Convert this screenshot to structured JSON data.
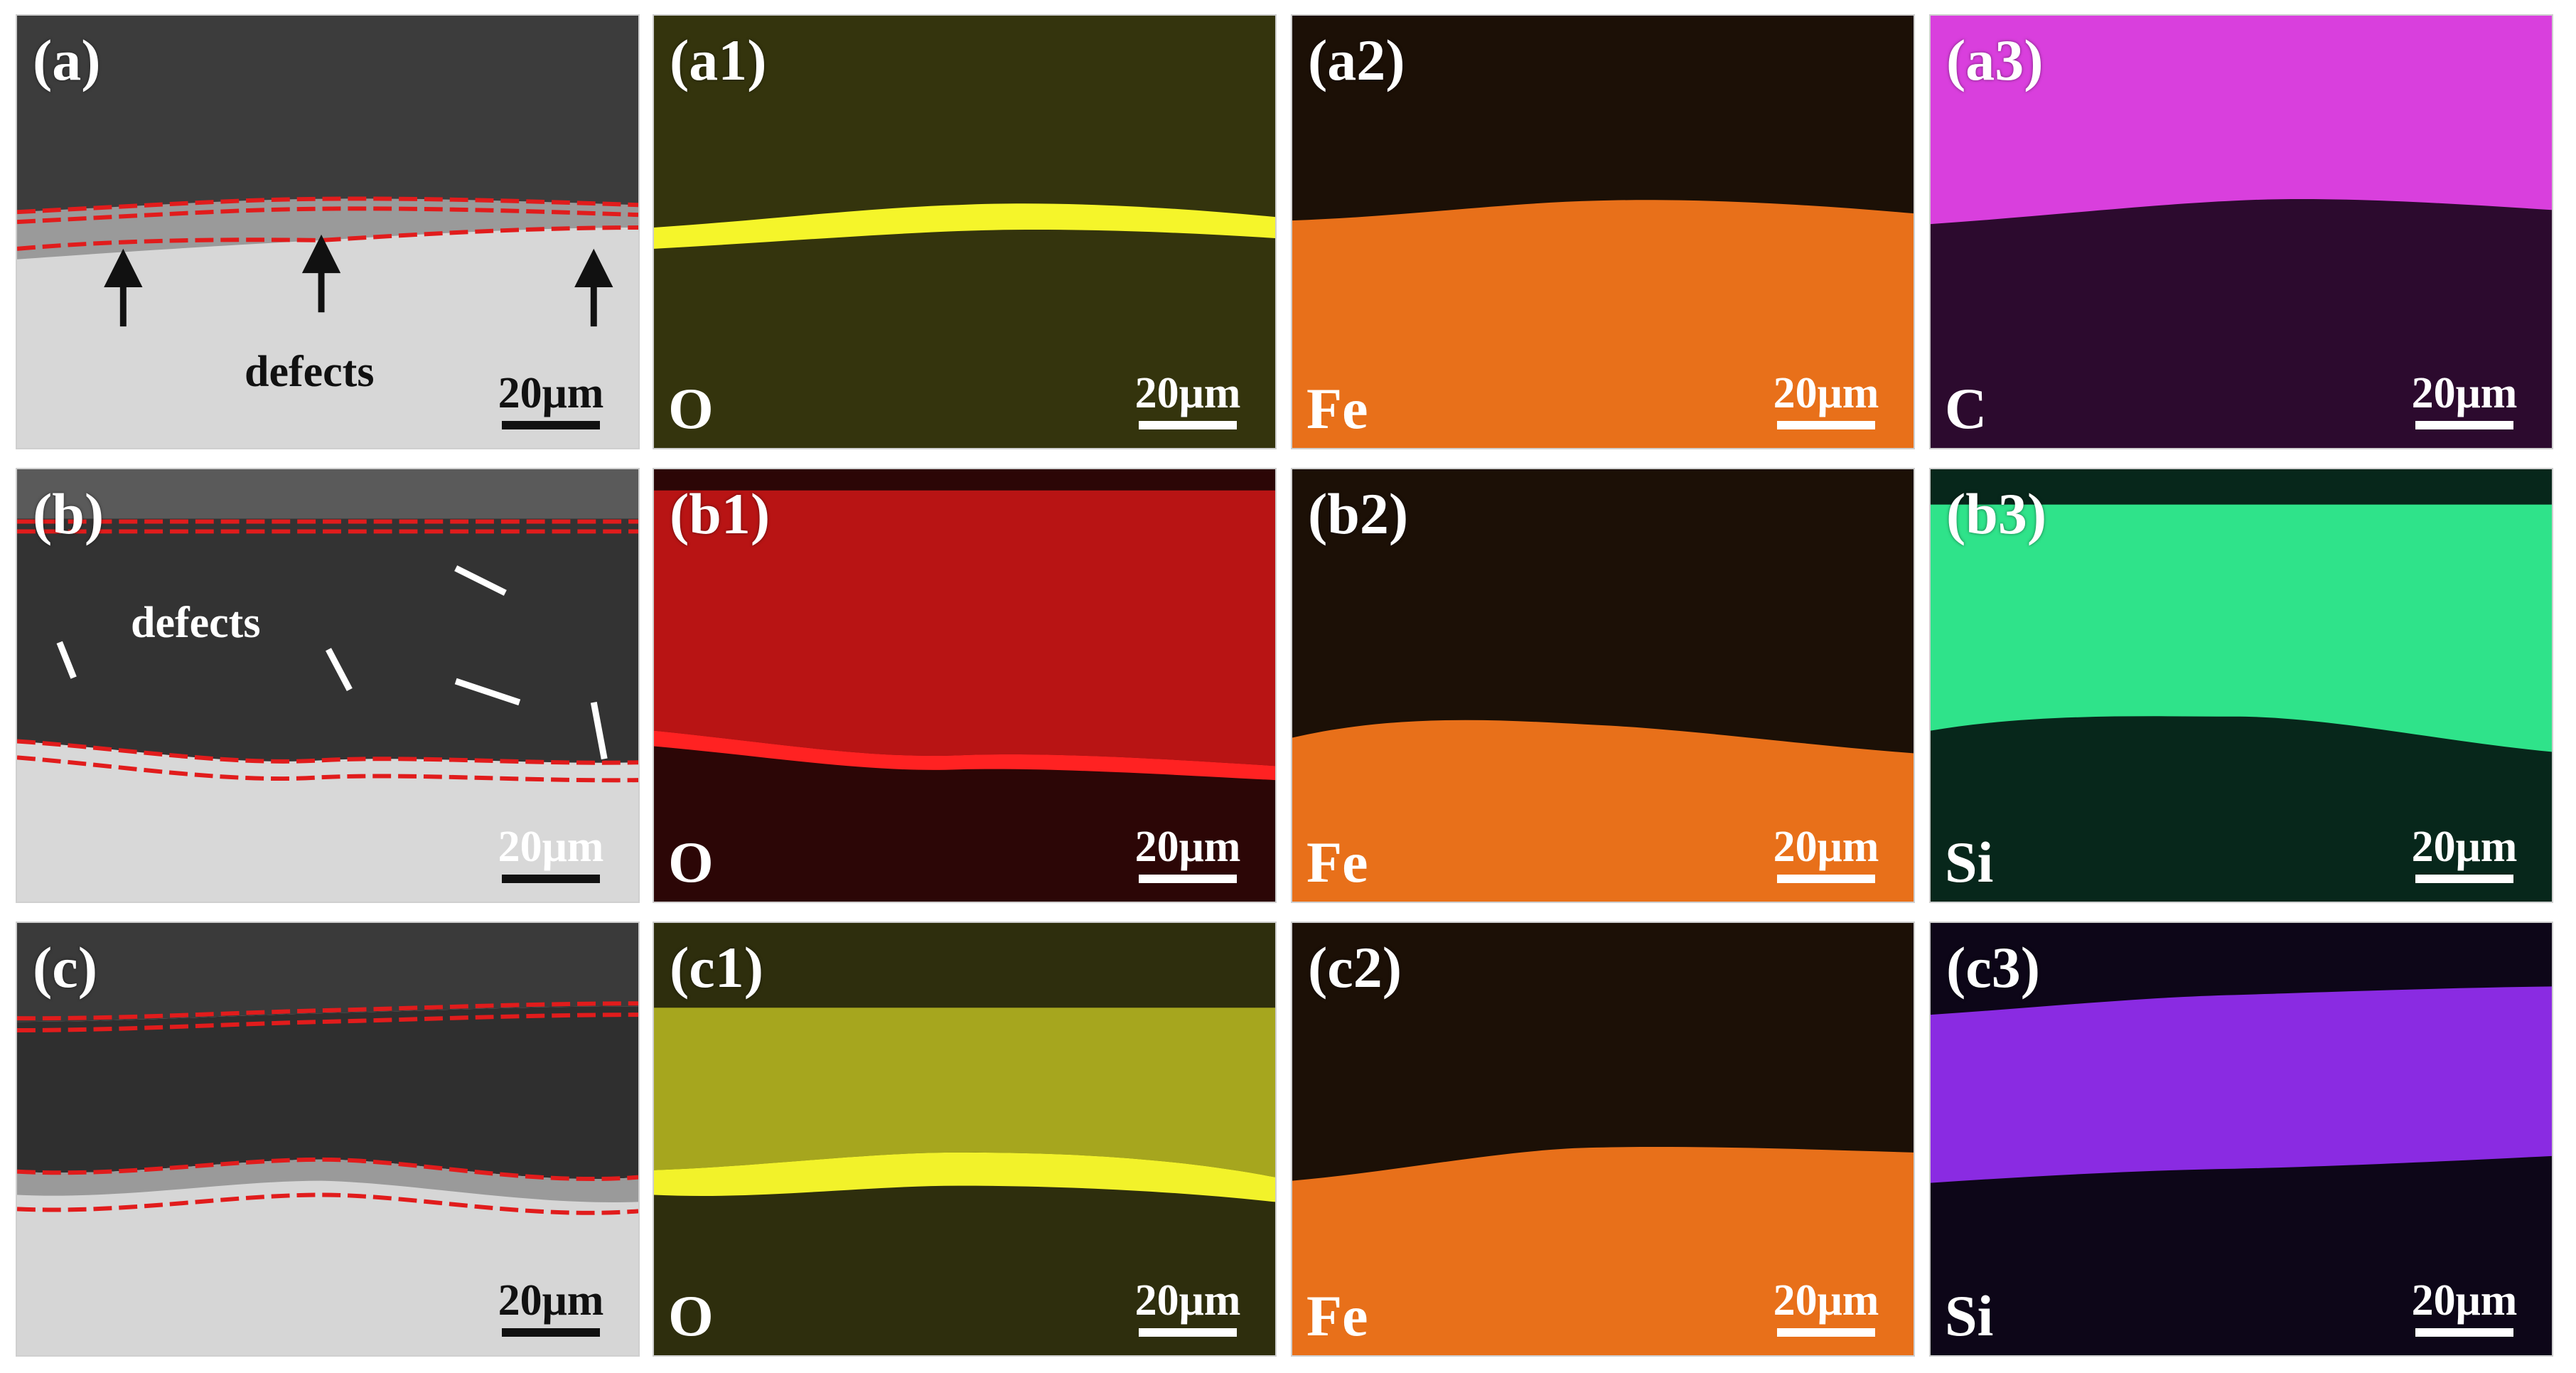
{
  "figure": {
    "rows": [
      {
        "id": "row-a",
        "panels": [
          {
            "label": "(a)",
            "kind": "sem",
            "scalebar": "20μm",
            "annotation": "defects",
            "scale_text_color": "dark"
          },
          {
            "label": "(a1)",
            "kind": "map",
            "element": "O",
            "color": "#ffff2a",
            "base_color": "#3a3a0f",
            "scalebar": "20μm"
          },
          {
            "label": "(a2)",
            "kind": "map",
            "element": "Fe",
            "color": "#ff7a10",
            "base_color": "#1a0f06",
            "scalebar": "20μm"
          },
          {
            "label": "(a3)",
            "kind": "map",
            "element": "C",
            "color": "#e238e6",
            "base_color": "#2a0a2c",
            "scalebar": "20μm"
          }
        ]
      },
      {
        "id": "row-b",
        "panels": [
          {
            "label": "(b)",
            "kind": "sem",
            "scalebar": "20μm",
            "annotation": "defects",
            "scale_text_color": "light"
          },
          {
            "label": "(b1)",
            "kind": "map",
            "element": "O",
            "color": "#ff1a1a",
            "base_color": "#2a0606",
            "scalebar": "20μm"
          },
          {
            "label": "(b2)",
            "kind": "map",
            "element": "Fe",
            "color": "#ff7a10",
            "base_color": "#1a0f06",
            "scalebar": "20μm"
          },
          {
            "label": "(b3)",
            "kind": "map",
            "element": "Si",
            "color": "#2ee88a",
            "base_color": "#06261a",
            "scalebar": "20μm"
          }
        ]
      },
      {
        "id": "row-c",
        "panels": [
          {
            "label": "(c)",
            "kind": "sem",
            "scalebar": "20μm",
            "scale_text_color": "dark"
          },
          {
            "label": "(c1)",
            "kind": "map",
            "element": "O",
            "color": "#ffff2a",
            "base_color": "#2f2f0e",
            "scalebar": "20μm"
          },
          {
            "label": "(c2)",
            "kind": "map",
            "element": "Fe",
            "color": "#ff7a10",
            "base_color": "#1a0f06",
            "scalebar": "20μm"
          },
          {
            "label": "(c3)",
            "kind": "map",
            "element": "Si",
            "color": "#8a2be2",
            "base_color": "#0c0518",
            "scalebar": "20μm"
          }
        ]
      }
    ]
  },
  "colors": {
    "sem_dark": "#3a3a3a",
    "sem_light": "#d9d9d9",
    "boundary_dash": "#e11c1c"
  }
}
